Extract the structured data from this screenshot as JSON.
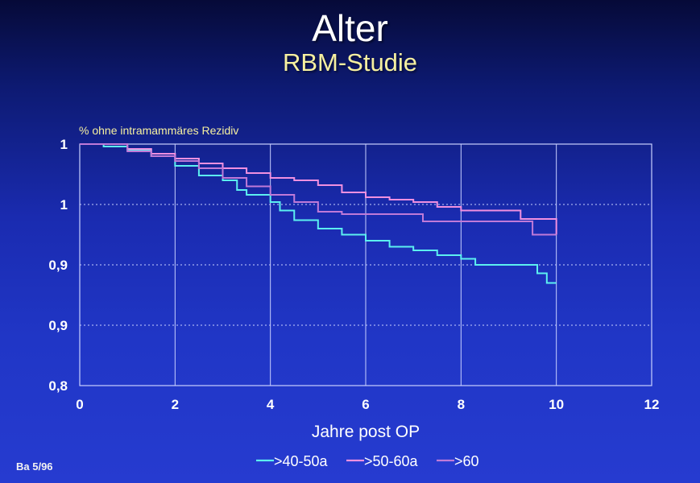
{
  "header": {
    "title": "Alter",
    "subtitle": "RBM-Studie"
  },
  "footer": {
    "code": "Ba 5/96"
  },
  "colors": {
    "background": "#2036c6",
    "plot_border": "#c8d0ff",
    "grid": "#c8d0ff",
    "subtitle": "#f6f0a0"
  },
  "chart_data": {
    "type": "line",
    "title": "",
    "ylabel": "% ohne intramammäres Rezidiv",
    "xlabel": "Jahre post OP",
    "xlim": [
      0,
      12
    ],
    "ylim": [
      0.8,
      1.0
    ],
    "x_ticks": [
      "0",
      "2",
      "4",
      "6",
      "8",
      "10",
      "12"
    ],
    "y_tick_values": [
      0.8,
      0.85,
      0.9,
      0.95,
      1.0
    ],
    "y_tick_labels": [
      "0,8",
      "0,9",
      "0,9",
      "1",
      "1"
    ],
    "grid": {
      "vertical": "solid",
      "horizontal": "dotted"
    },
    "legend_position": "bottom-center",
    "series": [
      {
        "name": ">40-50a",
        "color": "#5cf0f0",
        "points": [
          [
            0,
            1.0
          ],
          [
            0.5,
            0.998
          ],
          [
            1,
            0.995
          ],
          [
            1.5,
            0.99
          ],
          [
            2,
            0.982
          ],
          [
            2.5,
            0.974
          ],
          [
            3,
            0.97
          ],
          [
            3.3,
            0.962
          ],
          [
            3.5,
            0.958
          ],
          [
            4,
            0.952
          ],
          [
            4.2,
            0.945
          ],
          [
            4.5,
            0.937
          ],
          [
            5,
            0.93
          ],
          [
            5.5,
            0.925
          ],
          [
            6,
            0.92
          ],
          [
            6.5,
            0.915
          ],
          [
            7,
            0.912
          ],
          [
            7.5,
            0.908
          ],
          [
            8,
            0.905
          ],
          [
            8.3,
            0.9
          ],
          [
            9,
            0.9
          ],
          [
            9.5,
            0.9
          ],
          [
            9.6,
            0.893
          ],
          [
            9.8,
            0.885
          ],
          [
            10,
            0.885
          ]
        ]
      },
      {
        "name": ">50-60a",
        "color": "#f090e0",
        "points": [
          [
            0,
            1.0
          ],
          [
            1,
            0.996
          ],
          [
            1.5,
            0.992
          ],
          [
            2,
            0.988
          ],
          [
            2.5,
            0.984
          ],
          [
            3,
            0.98
          ],
          [
            3.5,
            0.976
          ],
          [
            4,
            0.972
          ],
          [
            4.5,
            0.97
          ],
          [
            5,
            0.966
          ],
          [
            5.5,
            0.96
          ],
          [
            6,
            0.956
          ],
          [
            6.5,
            0.954
          ],
          [
            7,
            0.952
          ],
          [
            7.5,
            0.948
          ],
          [
            8,
            0.945
          ],
          [
            9,
            0.945
          ],
          [
            9.2,
            0.945
          ],
          [
            9.25,
            0.938
          ],
          [
            9.8,
            0.938
          ],
          [
            10,
            0.925
          ]
        ]
      },
      {
        "name": ">60",
        "color": "#c07ad8",
        "points": [
          [
            0,
            1.0
          ],
          [
            1,
            0.994
          ],
          [
            1.5,
            0.99
          ],
          [
            2,
            0.986
          ],
          [
            2.5,
            0.98
          ],
          [
            3,
            0.972
          ],
          [
            3.5,
            0.965
          ],
          [
            4,
            0.958
          ],
          [
            4.5,
            0.952
          ],
          [
            5,
            0.944
          ],
          [
            5.5,
            0.942
          ],
          [
            6,
            0.942
          ],
          [
            7,
            0.942
          ],
          [
            7.2,
            0.936
          ],
          [
            8,
            0.936
          ],
          [
            9,
            0.936
          ],
          [
            9.4,
            0.936
          ],
          [
            9.5,
            0.925
          ],
          [
            10,
            0.925
          ]
        ]
      }
    ]
  }
}
